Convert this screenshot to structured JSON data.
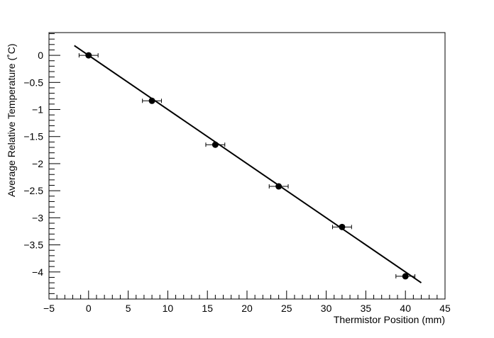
{
  "chart_data": {
    "type": "scatter",
    "title": "",
    "xlabel": "Thermistor Position (mm)",
    "ylabel": "Average Relative Temperature (˚C)",
    "xlim": [
      -5,
      45
    ],
    "ylim": [
      -4.5,
      0.42
    ],
    "grid": false,
    "legend": "none",
    "x_ticks": [
      -5,
      0,
      5,
      10,
      15,
      20,
      25,
      30,
      35,
      40,
      45
    ],
    "y_ticks": [
      0,
      -0.5,
      -1,
      -1.5,
      -2,
      -2.5,
      -3,
      -3.5,
      -4
    ],
    "x_tick_labels": [
      "−5",
      "0",
      "5",
      "10",
      "15",
      "20",
      "25",
      "30",
      "35",
      "40",
      "45"
    ],
    "y_tick_labels": [
      "0",
      "−0.5",
      "−1",
      "−1.5",
      "−2",
      "−2.5",
      "−3",
      "−3.5",
      "−4"
    ],
    "series": [
      {
        "points": [
          {
            "x": 0,
            "y": 0.0,
            "xerr": 1.2
          },
          {
            "x": 8,
            "y": -0.84,
            "xerr": 1.2
          },
          {
            "x": 16,
            "y": -1.65,
            "xerr": 1.2
          },
          {
            "x": 24,
            "y": -2.42,
            "xerr": 1.2
          },
          {
            "x": 32,
            "y": -3.17,
            "xerr": 1.2
          },
          {
            "x": 40,
            "y": -4.08,
            "xerr": 1.2
          }
        ],
        "marker_color": "#000000"
      }
    ],
    "fit_line": {
      "x": [
        -1.8,
        42
      ],
      "y": [
        0.18,
        -4.2
      ],
      "color": "#000000"
    }
  }
}
